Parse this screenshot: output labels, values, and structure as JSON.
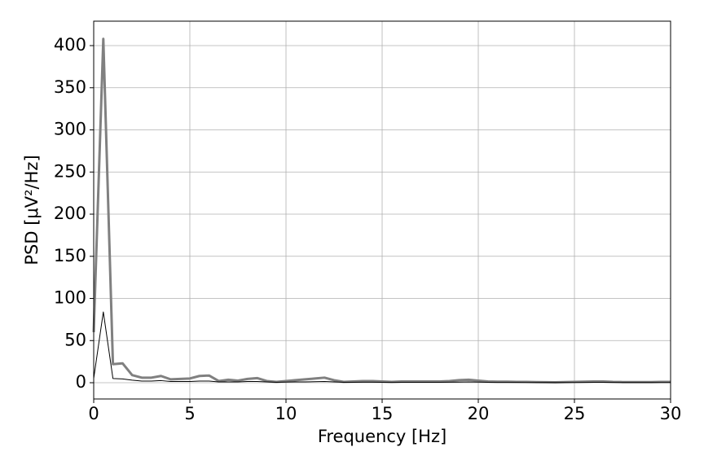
{
  "chart_data": {
    "type": "line",
    "xlabel": "Frequency [Hz]",
    "ylabel": "PSD [μV²/Hz]",
    "x": [
      0,
      0.5,
      1,
      1.5,
      2,
      2.5,
      3,
      3.5,
      4,
      4.5,
      5,
      5.5,
      6,
      6.5,
      7,
      7.5,
      8,
      8.5,
      9,
      9.5,
      10,
      10.5,
      11,
      11.5,
      12,
      12.5,
      13,
      13.5,
      14,
      14.5,
      15,
      15.5,
      16,
      16.5,
      17,
      17.5,
      18,
      18.5,
      19,
      19.5,
      20,
      20.5,
      21,
      21.5,
      22,
      22.5,
      23,
      23.5,
      24,
      24.5,
      25,
      25.5,
      26,
      26.5,
      27,
      27.5,
      28,
      28.5,
      29,
      29.5,
      30
    ],
    "series": [
      {
        "color": "#808080",
        "width": 3,
        "values": [
          60,
          408,
          22,
          23,
          9,
          6,
          6,
          8,
          4,
          4.5,
          5,
          8,
          8.5,
          2,
          3.5,
          2.5,
          4.5,
          5.5,
          2,
          1,
          2,
          3,
          4,
          5,
          6,
          3,
          1,
          1.5,
          2,
          2,
          1.5,
          1,
          1.5,
          1.5,
          1.5,
          1.5,
          1.5,
          2,
          3,
          3.5,
          2.5,
          1.5,
          1.2,
          1.2,
          1,
          1,
          0.8,
          0.6,
          0.5,
          0.8,
          1,
          1.2,
          1.5,
          1.5,
          1,
          0.8,
          0.8,
          0.8,
          0.8,
          1,
          1
        ]
      },
      {
        "color": "#000000",
        "width": 1,
        "values": [
          5,
          84,
          5,
          4.5,
          3,
          2,
          2,
          2.5,
          1.5,
          1.5,
          1.5,
          2,
          2,
          1,
          1,
          1,
          1.5,
          1.5,
          1,
          0.5,
          0.8,
          1,
          1,
          1.2,
          1.5,
          1,
          0.5,
          0.5,
          0.6,
          0.6,
          0.5,
          0.4,
          0.5,
          0.5,
          0.5,
          0.5,
          0.5,
          0.6,
          0.8,
          1,
          0.8,
          0.5,
          0.4,
          0.4,
          0.4,
          0.3,
          0.3,
          0.3,
          0.2,
          0.3,
          0.3,
          0.4,
          0.5,
          0.5,
          0.4,
          0.3,
          0.3,
          0.3,
          0.3,
          0.3,
          0.3
        ]
      }
    ],
    "xlim": [
      0,
      30
    ],
    "xticks": [
      0,
      5,
      10,
      15,
      20,
      25,
      30
    ],
    "ylim": [
      -19.3,
      429
    ],
    "yticks": [
      0,
      50,
      100,
      150,
      200,
      250,
      300,
      350,
      400
    ],
    "grid": true
  }
}
